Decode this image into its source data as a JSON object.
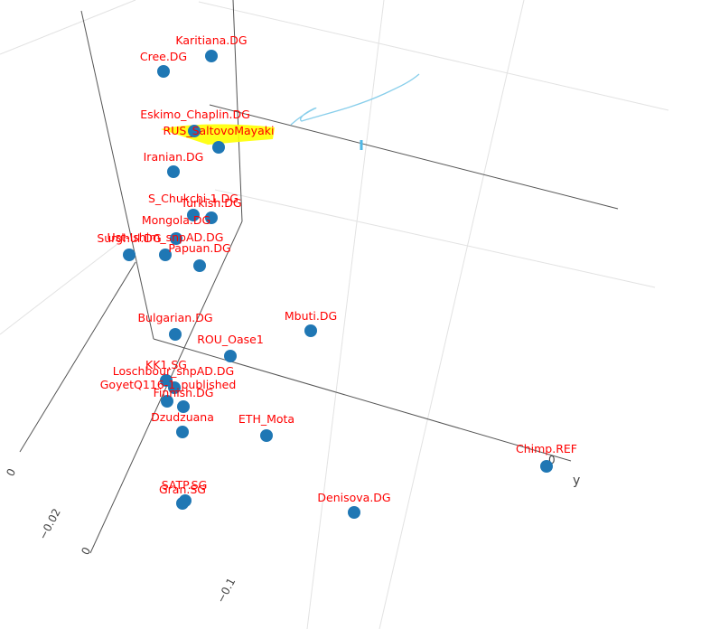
{
  "chart_data": {
    "type": "scatter",
    "axis_titles": {
      "y": "y"
    },
    "tick_labels": [
      "0",
      "−0.02",
      "0",
      "−0.1",
      "0"
    ],
    "marker_color": "#1f77b4",
    "label_color": "#ff0000",
    "highlight_color": "#ffff00",
    "annotation_color": "#87ceeb",
    "points": [
      {
        "label": "Karitiana.DG"
      },
      {
        "label": "Cree.DG"
      },
      {
        "label": "Eskimo_Chaplin.DG"
      },
      {
        "label": "RUS_SaltovoMayaki",
        "highlighted": true
      },
      {
        "label": "Iranian.DG"
      },
      {
        "label": "S_Chukchi-1.DG"
      },
      {
        "label": "Turkish.DG"
      },
      {
        "label": "Mongola.DG"
      },
      {
        "label": "Ust-Ishim_snpAD.DG"
      },
      {
        "label": "Surghul.DG"
      },
      {
        "label": "Papuan.DG"
      },
      {
        "label": "Bulgarian.DG"
      },
      {
        "label": "Mbuti.DG"
      },
      {
        "label": "ROU_Oase1"
      },
      {
        "label": "Loschbour_snpAD.DG"
      },
      {
        "label": "KK1.SG"
      },
      {
        "label": "GoyetQ116-1_published"
      },
      {
        "label": "Finnish.DG"
      },
      {
        "label": "Dzudzuana"
      },
      {
        "label": "ETH_Mota"
      },
      {
        "label": "Chimp.REF"
      },
      {
        "label": "SATP.SG"
      },
      {
        "label": "Gran.SG"
      },
      {
        "label": "Denisova.DG"
      }
    ]
  }
}
